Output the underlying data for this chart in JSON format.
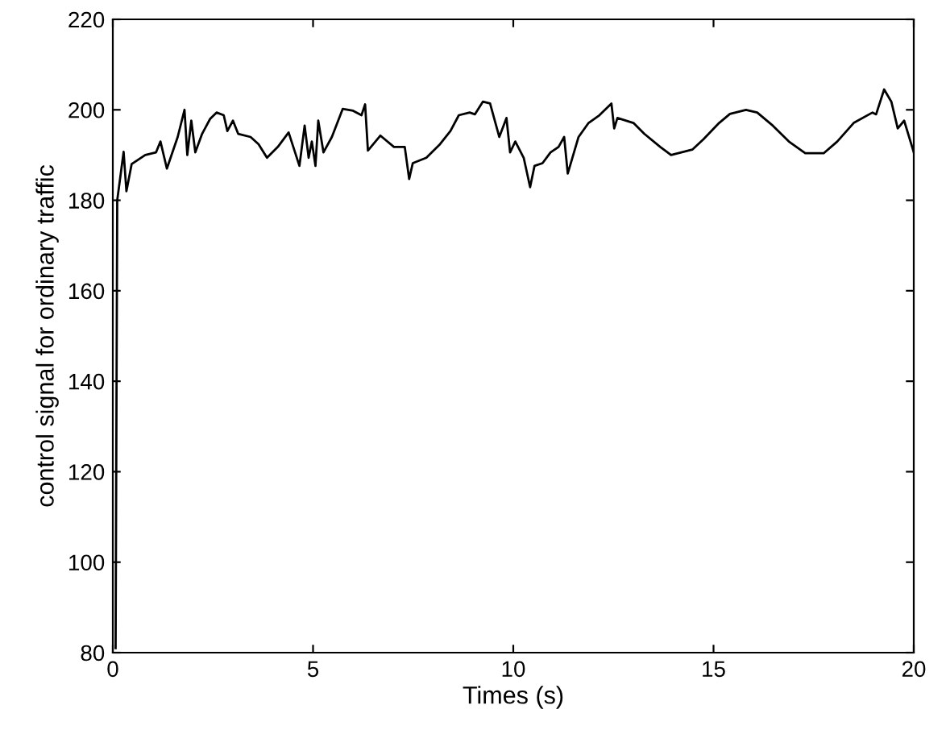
{
  "chart_data": {
    "type": "line",
    "xlabel": "Times (s)",
    "ylabel": "control signal for ordinary traffic",
    "xlim": [
      0,
      20
    ],
    "ylim": [
      80,
      220
    ],
    "xticks": [
      0,
      5,
      10,
      15,
      20
    ],
    "yticks": [
      80,
      100,
      120,
      140,
      160,
      180,
      200,
      220
    ],
    "grid": false,
    "marker": "none",
    "line_style": "solid",
    "series": [
      {
        "color": "#000000",
        "x": [
          0.07,
          0.11,
          0.27,
          0.34,
          0.47,
          0.81,
          1.08,
          1.19,
          1.35,
          1.62,
          1.79,
          1.86,
          1.96,
          2.06,
          2.23,
          2.43,
          2.59,
          2.77,
          2.86,
          3.0,
          3.13,
          3.44,
          3.64,
          3.85,
          4.12,
          4.39,
          4.66,
          4.79,
          4.89,
          4.97,
          5.06,
          5.13,
          5.26,
          5.47,
          5.74,
          6.0,
          6.21,
          6.3,
          6.37,
          6.68,
          7.02,
          7.29,
          7.4,
          7.49,
          7.83,
          8.17,
          8.43,
          8.64,
          8.91,
          9.04,
          9.24,
          9.42,
          9.65,
          9.83,
          9.92,
          10.05,
          10.26,
          10.42,
          10.53,
          10.73,
          10.93,
          11.13,
          11.27,
          11.36,
          11.63,
          11.88,
          12.15,
          12.45,
          12.52,
          12.6,
          13.0,
          13.27,
          13.67,
          13.94,
          14.47,
          14.75,
          15.14,
          15.41,
          15.81,
          16.09,
          16.48,
          16.88,
          17.29,
          17.75,
          18.09,
          18.5,
          18.97,
          19.06,
          19.26,
          19.44,
          19.6,
          19.76,
          20.0
        ],
        "values": [
          81,
          180,
          190.7,
          182,
          188,
          190,
          190.6,
          193,
          187,
          194,
          200,
          190,
          197.6,
          190.6,
          194.7,
          198,
          199.4,
          198.8,
          195.3,
          197.6,
          194.7,
          194,
          192.4,
          189.4,
          191.8,
          195,
          187.6,
          196.5,
          189.4,
          193,
          187.6,
          197.6,
          190.6,
          194,
          200.2,
          199.8,
          198.8,
          201.2,
          191,
          194.3,
          191.8,
          191.8,
          184.7,
          188.2,
          189.4,
          192.4,
          195.3,
          198.8,
          199.4,
          199,
          201.8,
          201.4,
          194,
          198.2,
          190.6,
          193,
          189.4,
          182.9,
          187.6,
          188.2,
          190.6,
          191.8,
          194,
          185.9,
          194,
          197.1,
          198.8,
          201.4,
          195.9,
          198.2,
          197.1,
          194.7,
          191.8,
          190,
          191.2,
          193.5,
          197.1,
          199.1,
          200,
          199.4,
          196.5,
          193,
          190.4,
          190.4,
          193,
          197.1,
          199.4,
          199,
          204.5,
          201.8,
          195.9,
          197.6,
          190.6
        ]
      }
    ]
  }
}
